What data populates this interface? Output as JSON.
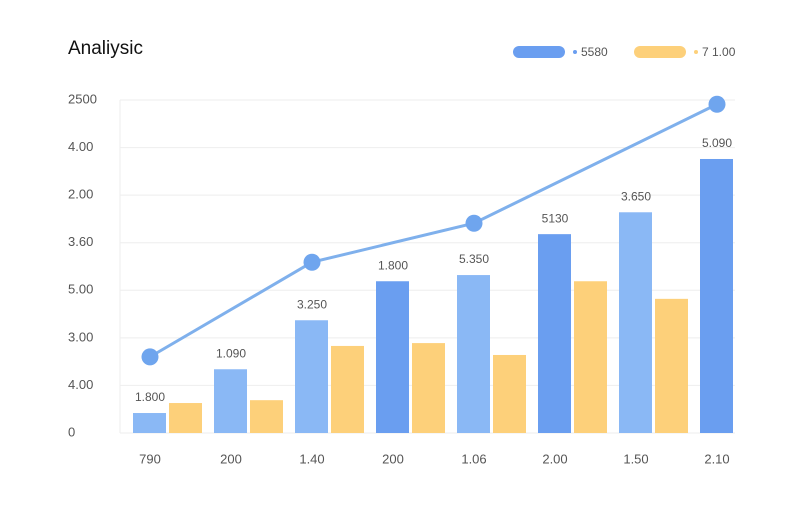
{
  "chart_data": [
    {
      "type": "bar",
      "title": "Analiysic",
      "categories": [
        "790",
        "200",
        "1.40",
        "200",
        "1.06",
        "2.00",
        "1.50",
        "2.10"
      ],
      "series": [
        {
          "name": "5580",
          "color": "#6a9ef0",
          "colors": [
            "#8ab8f5",
            "#8ab8f5",
            "#8ab8f5",
            "#6a9ef0",
            "#8ab8f5",
            "#6a9ef0",
            "#8ab8f5",
            "#6a9ef0"
          ],
          "values": [
            0.42,
            1.34,
            2.37,
            3.19,
            3.32,
            4.18,
            4.64,
            5.76
          ]
        },
        {
          "name": "7 1.00",
          "color": "#fdd07a",
          "values": [
            0.63,
            0.69,
            1.83,
            1.89,
            1.64,
            3.19,
            2.82,
            null
          ]
        }
      ],
      "annotations": [
        "1.800",
        "1.090",
        "3.250",
        "1.800",
        "5.350",
        "5130",
        "3.650",
        "5.090"
      ],
      "ylim": [
        0,
        7
      ],
      "yticks": [
        0,
        {
          "value": 1,
          "label": "4.00"
        },
        {
          "value": 2,
          "label": "3.00"
        },
        {
          "value": 3,
          "label": "5.00"
        },
        {
          "value": 4,
          "label": "3.60"
        },
        {
          "value": 5,
          "label": "2.00"
        },
        {
          "value": 6,
          "label": "4.00"
        },
        {
          "value": 7,
          "label": "2500"
        }
      ],
      "grid": true
    },
    {
      "type": "line",
      "series": [
        {
          "color": "#7fb0ec",
          "x": [
            0,
            2,
            4,
            7
          ],
          "values": [
            1.6,
            3.59,
            4.41,
            6.91
          ]
        }
      ],
      "ylim": [
        0,
        7
      ]
    }
  ]
}
